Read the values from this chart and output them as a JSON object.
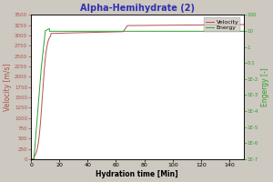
{
  "title": "Alpha-Hemihydrate (2)",
  "xlabel": "Hydration time [Min]",
  "ylabel_left": "Velocity [m/s]",
  "ylabel_right": "Engergy [-]",
  "legend_velocity": "Velocity",
  "legend_energy": "Energy",
  "xlim": [
    0,
    150
  ],
  "ylim_left": [
    0,
    3500
  ],
  "background_color": "#cdc8c0",
  "plot_bg_color": "#ffffff",
  "velocity_color": "#b05050",
  "energy_color": "#30a030",
  "title_color": "#3030b0",
  "left_axis_color": "#b05050",
  "right_axis_color": "#30a030"
}
